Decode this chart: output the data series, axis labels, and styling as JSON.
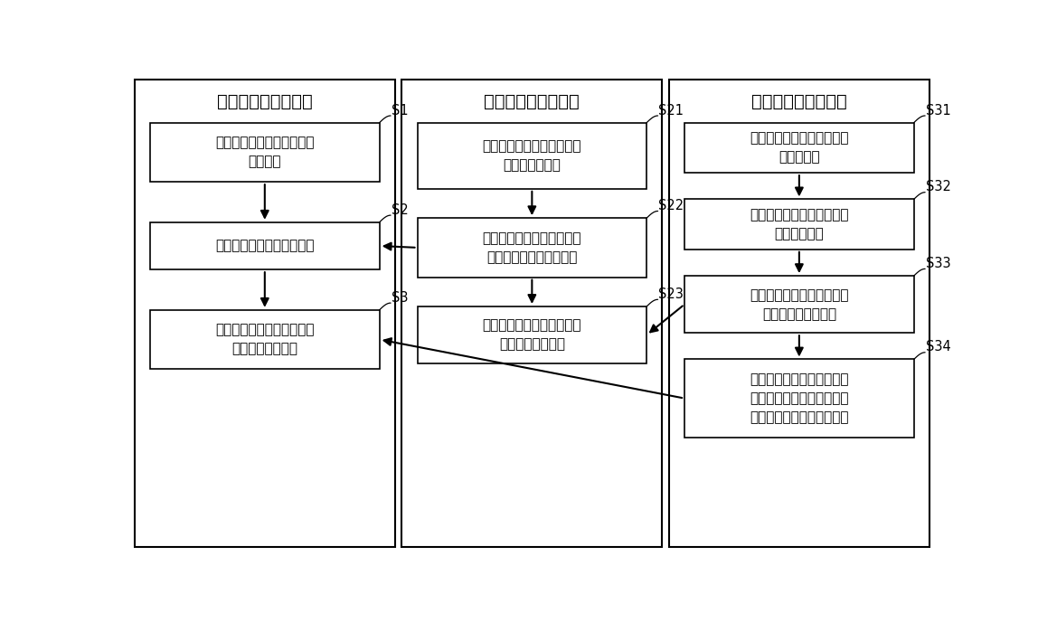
{
  "col1_title": "环境感知配置主流程",
  "col2_title": "感知节点配置子流程",
  "col3_title": "转换联动配置子流程",
  "col1_boxes": [
    {
      "label": "S1",
      "text": "设置采样频率，即每秒钟采\n集多少次"
    },
    {
      "label": "S2",
      "text": "设置感知链，添加感知节点"
    },
    {
      "label": "S3",
      "text": "选择转换联动，对感知链输\n出的数据进行处理"
    }
  ],
  "col2_boxes": [
    {
      "label": "S21",
      "text": "选择感知源，支持视频、音\n频、文本、雷达"
    },
    {
      "label": "S22",
      "text": "选择算法，部分算法还需额\n外上传附件用于辅助分析"
    },
    {
      "label": "S23",
      "text": "选择转换联动，对感知源提\n供的数据进行处理"
    }
  ],
  "col3_boxes": [
    {
      "label": "S31",
      "text": "设置事件策略，对数据进行\n第一次过滤"
    },
    {
      "label": "S32",
      "text": "选择数据处理插件，对数据\n进行转换处理"
    },
    {
      "label": "S33",
      "text": "设置数据过滤，对转换后的\n数据进行第二次过滤"
    },
    {
      "label": "S34",
      "text": "设置联动规则，根据不同的\n数据结果，触发执行不同的\n任务，支持向任务传递参数"
    }
  ],
  "bg_color": "#ffffff",
  "box_facecolor": "#ffffff",
  "box_edgecolor": "#000000",
  "text_color": "#000000",
  "title_fontsize": 14,
  "text_fontsize": 11,
  "label_fontsize": 10.5
}
